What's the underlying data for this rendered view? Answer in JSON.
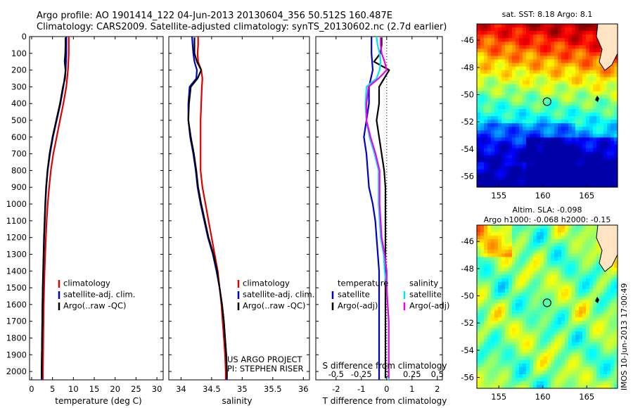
{
  "header": {
    "line1": "Argo profile: AO 1901414_122 04-Jun-2013 20130604_356 50.512S 160.487E",
    "line2": "Climatology: CARS2009. Satellite-adjusted climatology: synTS_20130602.nc (2.7d earlier)"
  },
  "colors": {
    "climatology": "#e00000",
    "satellite": "#0000cc",
    "argo": "#000000",
    "sal_satellite": "#00e5ee",
    "sal_argo": "#ee00ee"
  },
  "pressure_axis": {
    "min": 0,
    "max": 2050,
    "ticks": [
      0,
      100,
      200,
      300,
      400,
      500,
      600,
      700,
      800,
      900,
      1000,
      1100,
      1200,
      1300,
      1400,
      1500,
      1600,
      1700,
      1800,
      1900,
      2000
    ]
  },
  "legend1": {
    "items": [
      {
        "label": "climatology",
        "color": "#e00000"
      },
      {
        "label": "satellite-adj. clim.",
        "color": "#0000cc"
      },
      {
        "label": "Argo(..raw -QC)",
        "color": "#000000"
      }
    ]
  },
  "legend2": {
    "items": [
      {
        "label": "climatology",
        "color": "#e00000"
      },
      {
        "label": "satellite-adj. clim.",
        "color": "#0000cc"
      },
      {
        "label": "Argo(..raw -QC)",
        "color": "#000000"
      }
    ]
  },
  "legend3": {
    "temp_title": "temperature",
    "sal_title": "salinity",
    "temp_items": [
      {
        "label": "satellite",
        "color": "#0000cc"
      },
      {
        "label": "Argo(-adj)",
        "color": "#000000"
      }
    ],
    "sal_items": [
      {
        "label": "satellite",
        "color": "#00e5ee"
      },
      {
        "label": "Argo(-adj)",
        "color": "#ee00ee"
      }
    ]
  },
  "annotations": {
    "project": "US ARGO PROJECT",
    "pi": "PI: STEPHEN RISER",
    "s_diff_title": "S difference from climatology"
  },
  "maps": {
    "top": {
      "title": "sat. SST: 8.18 Argo: 8.1",
      "yticks": [
        "-46",
        "-48",
        "-50",
        "-52",
        "-54",
        "-56"
      ],
      "xticks": [
        "155",
        "160",
        "165"
      ],
      "marker": {
        "lon": 160.487,
        "lat": -50.512
      }
    },
    "bottom": {
      "title1": "Altim. SLA: -0.098",
      "title2": "Argo h1000: -0.068 h2000: -0.15",
      "yticks": [
        "-46",
        "-48",
        "-50",
        "-52",
        "-54",
        "-56"
      ],
      "xticks": [
        "155",
        "160",
        "165"
      ],
      "marker": {
        "lon": 160.487,
        "lat": -50.512
      }
    },
    "lon_range": [
      152.5,
      168.5
    ],
    "lat_range": [
      -56.8,
      -44.8
    ]
  },
  "timestamp": "IMOS 10-Jun-2013 17:00:49",
  "chart_data": [
    {
      "type": "line",
      "xlabel": "temperature (deg C)",
      "ylabel": "",
      "xlim": [
        -0.5,
        31.5
      ],
      "xticks": [
        0,
        5,
        10,
        15,
        20,
        25,
        30
      ],
      "ylim": [
        0,
        2050
      ],
      "series": [
        {
          "name": "climatology",
          "color": "#e00000",
          "pressure": [
            0,
            50,
            100,
            200,
            300,
            400,
            500,
            600,
            700,
            800,
            900,
            1000,
            1100,
            1200,
            1300,
            1400,
            1500,
            1600,
            1700,
            1800,
            1900,
            2000,
            2050
          ],
          "values": [
            8.9,
            8.9,
            8.9,
            8.7,
            8.3,
            7.6,
            6.8,
            6.0,
            5.2,
            4.6,
            4.2,
            3.85,
            3.6,
            3.4,
            3.25,
            3.1,
            3.0,
            2.9,
            2.85,
            2.8,
            2.75,
            2.7,
            2.7
          ]
        },
        {
          "name": "satellite-adj. clim.",
          "color": "#0000cc",
          "pressure": [
            0,
            50,
            100,
            200,
            300,
            400,
            500,
            600,
            700,
            800,
            900,
            1000,
            1100,
            1200,
            1300,
            1400,
            1500,
            1600,
            1700,
            1800,
            1900,
            2000,
            2050
          ],
          "values": [
            8.3,
            8.3,
            8.3,
            8.15,
            7.6,
            6.9,
            6.0,
            5.1,
            4.4,
            3.85,
            3.5,
            3.3,
            3.15,
            3.0,
            2.9,
            2.8,
            2.7,
            2.6,
            2.55,
            2.5,
            2.45,
            2.4,
            2.4
          ]
        },
        {
          "name": "Argo(..raw -QC)",
          "color": "#000000",
          "pressure": [
            5,
            50,
            100,
            150,
            200,
            250,
            300,
            400,
            500,
            600,
            700,
            800,
            900,
            1000,
            1100,
            1200,
            1300,
            1400,
            1500,
            1600,
            1700,
            1800,
            1900,
            2000,
            2040
          ],
          "values": [
            8.1,
            8.1,
            8.05,
            7.9,
            8.1,
            8.0,
            7.5,
            6.8,
            5.9,
            5.0,
            4.3,
            3.8,
            3.45,
            3.25,
            3.1,
            2.95,
            2.85,
            2.75,
            2.65,
            2.6,
            2.55,
            2.5,
            2.45,
            2.4,
            2.4
          ]
        }
      ]
    },
    {
      "type": "line",
      "xlabel": "salinity",
      "ylabel": "",
      "xlim": [
        33.8,
        36.1
      ],
      "xticks": [
        34,
        34.5,
        35,
        35.5,
        36
      ],
      "ylim": [
        0,
        2050
      ],
      "series": [
        {
          "name": "climatology",
          "color": "#e00000",
          "pressure": [
            0,
            50,
            100,
            150,
            200,
            250,
            300,
            400,
            500,
            600,
            700,
            800,
            900,
            1000,
            1100,
            1200,
            1300,
            1400,
            1500,
            1600,
            1700,
            1800,
            1900,
            2000,
            2050
          ],
          "values": [
            34.28,
            34.28,
            34.27,
            34.28,
            34.33,
            34.35,
            34.34,
            34.33,
            34.32,
            34.32,
            34.32,
            34.32,
            34.35,
            34.4,
            34.45,
            34.5,
            34.55,
            34.6,
            34.63,
            34.66,
            34.68,
            34.7,
            34.72,
            34.73,
            34.73
          ]
        },
        {
          "name": "satellite-adj. clim.",
          "color": "#0000cc",
          "pressure": [
            0,
            50,
            100,
            150,
            200,
            250,
            300,
            400,
            500,
            600,
            700,
            800,
            900,
            1000,
            1100,
            1200,
            1300,
            1400,
            1500,
            1600,
            1700,
            1800,
            1900,
            2000,
            2050
          ],
          "values": [
            34.18,
            34.19,
            34.2,
            34.22,
            34.26,
            34.25,
            34.14,
            34.12,
            34.12,
            34.15,
            34.2,
            34.24,
            34.27,
            34.32,
            34.38,
            34.44,
            34.52,
            34.58,
            34.63,
            34.67,
            34.7,
            34.72,
            34.74,
            34.75,
            34.75
          ]
        },
        {
          "name": "Argo(..raw -QC)",
          "color": "#000000",
          "pressure": [
            5,
            50,
            100,
            150,
            200,
            250,
            300,
            400,
            500,
            600,
            700,
            800,
            900,
            1000,
            1100,
            1200,
            1300,
            1400,
            1500,
            1600,
            1700,
            1800,
            1900,
            2000,
            2040
          ],
          "values": [
            34.22,
            34.22,
            34.22,
            34.26,
            34.33,
            34.27,
            34.16,
            34.13,
            34.12,
            34.16,
            34.21,
            34.25,
            34.28,
            34.33,
            34.39,
            34.45,
            34.53,
            34.59,
            34.63,
            34.67,
            34.7,
            34.72,
            34.74,
            34.75,
            34.75
          ]
        }
      ]
    },
    {
      "type": "line",
      "xlabel": "T difference from climatology",
      "ylabel": "",
      "xlim": [
        -2.8,
        2.2
      ],
      "xticks": [
        -2,
        -1,
        0,
        1,
        2
      ],
      "top_xlabel": "S difference from climatology",
      "top_xticks": [
        {
          "value": -0.5,
          "label": "-0.5"
        },
        {
          "value": -0.25,
          "label": "-0.25"
        },
        {
          "value": 0,
          "label": "0"
        },
        {
          "value": 0.25,
          "label": "0.25"
        },
        {
          "value": 0.5,
          "label": "0.5"
        }
      ],
      "ylim": [
        0,
        2050
      ],
      "series": [
        {
          "name": "temperature satellite",
          "color": "#0000cc",
          "pressure": [
            0,
            50,
            100,
            200,
            300,
            400,
            500,
            600,
            700,
            800,
            900,
            1000,
            1100,
            1200,
            1300,
            1400,
            1500,
            1600,
            1700,
            1800,
            1900,
            2000,
            2050
          ],
          "values": [
            -0.6,
            -0.6,
            -0.6,
            -0.55,
            -0.7,
            -0.7,
            -0.8,
            -0.9,
            -0.8,
            -0.75,
            -0.7,
            -0.55,
            -0.45,
            -0.4,
            -0.35,
            -0.3,
            -0.3,
            -0.3,
            -0.3,
            -0.3,
            -0.3,
            -0.3,
            -0.3
          ]
        },
        {
          "name": "temperature Argo(-adj)",
          "color": "#000000",
          "pressure": [
            5,
            50,
            100,
            150,
            200,
            250,
            300,
            400,
            500,
            600,
            700,
            800,
            900,
            1000,
            1100,
            1200,
            1300,
            1400,
            1500,
            1600,
            1700,
            1800,
            1900,
            2000,
            2040
          ],
          "values": [
            -0.2,
            -0.2,
            -0.25,
            -0.5,
            0.1,
            -0.1,
            -0.3,
            -0.3,
            -0.4,
            -0.3,
            -0.2,
            -0.1,
            -0.05,
            -0.05,
            -0.05,
            -0.05,
            -0.05,
            -0.05,
            -0.05,
            -0.05,
            -0.05,
            -0.05,
            -0.05,
            -0.05,
            -0.05
          ]
        },
        {
          "name": "salinity satellite",
          "color": "#00e5ee",
          "pressure": [
            0,
            50,
            100,
            150,
            200,
            250,
            300,
            400,
            500,
            600,
            700,
            800,
            900,
            1000,
            1100,
            1200,
            1300,
            1400,
            1500,
            1600,
            1700,
            1800,
            1900,
            2000,
            2050
          ],
          "values": [
            -0.1,
            -0.09,
            -0.07,
            -0.06,
            -0.07,
            -0.1,
            -0.2,
            -0.21,
            -0.2,
            -0.17,
            -0.12,
            -0.08,
            -0.08,
            -0.08,
            -0.07,
            -0.06,
            -0.03,
            -0.02,
            0.0,
            0.01,
            0.02,
            0.02,
            0.02,
            0.02,
            0.02
          ]
        },
        {
          "name": "salinity Argo(-adj)",
          "color": "#ee00ee",
          "pressure": [
            5,
            50,
            100,
            150,
            200,
            250,
            300,
            400,
            500,
            600,
            700,
            800,
            900,
            1000,
            1100,
            1200,
            1300,
            1400,
            1500,
            1600,
            1700,
            1800,
            1900,
            2000,
            2040
          ],
          "values": [
            -0.06,
            -0.06,
            -0.05,
            -0.02,
            0.0,
            -0.08,
            -0.18,
            -0.2,
            -0.2,
            -0.16,
            -0.11,
            -0.07,
            -0.07,
            -0.07,
            -0.06,
            -0.05,
            -0.02,
            0.0,
            0.0,
            0.01,
            0.02,
            0.02,
            0.02,
            0.02,
            0.02
          ]
        }
      ]
    }
  ]
}
